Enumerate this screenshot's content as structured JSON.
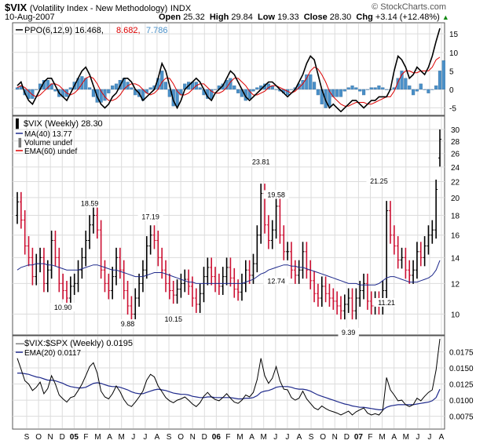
{
  "header": {
    "symbol": "$VIX",
    "description": "(Volatility Index - New Methodology)",
    "exchange": "INDX",
    "date": "10-Aug-2007",
    "open_label": "Open",
    "open": "25.32",
    "high_label": "High",
    "high": "29.84",
    "low_label": "Low",
    "low": "19.33",
    "close_label": "Close",
    "close": "28.30",
    "chg_label": "Chg",
    "chg": "+3.14 (+12.48%)",
    "brand": "© StockCharts.com"
  },
  "colors": {
    "ppo_line": "#000000",
    "ppo_signal": "#dd0000",
    "ppo_hist": "#4a90c8",
    "ma": "#1f2a8c",
    "ema60": "#dd0000",
    "up_bar": "#000000",
    "down_bar": "#cc1133",
    "ratio_line": "#000000",
    "ratio_ema": "#1f2a8c",
    "grid": "#dcdcdc"
  },
  "chart_data": [
    {
      "type": "line",
      "panel": "ppo",
      "legend": [
        "PPO(6,12,9) 16.468,",
        "8.682,",
        "7.786"
      ],
      "ylim": [
        -7,
        18
      ],
      "yticks": [
        "15",
        "10",
        "5",
        "0",
        "-5"
      ],
      "series": [
        {
          "name": "PPO(6,12,9)",
          "values": [
            1,
            2,
            -1,
            -3,
            -4,
            -2,
            0,
            2,
            3,
            3,
            1,
            -1,
            -2,
            -3,
            -1,
            1,
            3,
            5,
            6,
            4,
            1,
            -2,
            -4,
            -5,
            -4,
            -2,
            -1,
            1,
            3,
            3,
            2,
            0,
            -1,
            -3,
            -2,
            -1,
            0,
            3,
            7,
            5,
            1,
            -3,
            -5,
            -3,
            0,
            1,
            2,
            3,
            2,
            0,
            -2,
            -3,
            -1,
            0,
            1,
            3,
            5,
            4,
            2,
            0,
            -2,
            -3,
            -2,
            -1,
            0,
            1,
            2,
            2,
            1,
            0,
            -1,
            -2,
            -1,
            0,
            2,
            4,
            7,
            9,
            8,
            4,
            0,
            -3,
            -5,
            -4,
            -5,
            -6,
            -5,
            -4,
            -3,
            -3,
            -4,
            -5,
            -4,
            -3,
            -3,
            -2,
            -2,
            -2,
            0,
            5,
            9,
            8,
            6,
            3,
            4,
            6,
            5,
            4,
            6,
            9,
            13,
            16.5
          ]
        },
        {
          "name": "Signal",
          "values": [
            0.5,
            1,
            0.5,
            -0.5,
            -1.5,
            -2,
            -1.5,
            -0.5,
            0.5,
            1.5,
            1.5,
            1,
            0,
            -1,
            -1.5,
            -1,
            0,
            1.5,
            3,
            3.5,
            3,
            1.5,
            -0.5,
            -2,
            -3,
            -3,
            -2.5,
            -1.5,
            0,
            1,
            1.5,
            1.5,
            1,
            0,
            -1,
            -1.5,
            -1,
            0,
            2,
            3,
            3,
            1.5,
            -0.5,
            -1.5,
            -1.5,
            -1,
            0,
            1,
            1.5,
            1.5,
            0.5,
            -0.5,
            -1,
            -1,
            -0.5,
            0.5,
            2,
            3,
            3,
            2,
            1,
            -0.5,
            -1.5,
            -1.5,
            -1,
            -0.5,
            0.5,
            1,
            1,
            0.5,
            0,
            -0.5,
            -1,
            -0.5,
            0.5,
            1.5,
            3,
            5,
            6,
            5.5,
            4,
            2,
            -0.5,
            -2,
            -3,
            -4,
            -4.5,
            -4.5,
            -4,
            -3.5,
            -3.5,
            -3.5,
            -4,
            -4,
            -3.5,
            -3,
            -2.5,
            -2,
            -2,
            -0.5,
            2,
            4,
            5,
            5,
            4.5,
            4.5,
            5,
            5,
            5,
            6,
            8,
            8.7
          ]
        },
        {
          "name": "Histogram",
          "values": [
            0.5,
            1,
            -1.5,
            -2.5,
            -2.5,
            0,
            1.5,
            2.5,
            2.5,
            1.5,
            -0.5,
            -2,
            -2,
            -2,
            0.5,
            2,
            3,
            3.5,
            3,
            0.5,
            -2,
            -3.5,
            -3.5,
            -3,
            -1,
            1,
            1.5,
            2.5,
            3,
            2,
            0.5,
            -1.5,
            -2,
            -3,
            -1,
            0.5,
            1,
            3,
            5,
            2,
            -2,
            -4.5,
            -4.5,
            -1.5,
            1.5,
            2,
            2,
            2,
            0.5,
            -1.5,
            -2.5,
            -2.5,
            0,
            1,
            1.5,
            2.5,
            3,
            1,
            -1,
            -2,
            -3,
            -2.5,
            -0.5,
            0.5,
            1,
            1.5,
            1.5,
            1,
            0,
            -0.5,
            -1,
            -1.5,
            0,
            0.5,
            1.5,
            2.5,
            4,
            4,
            2,
            -1.5,
            -4,
            -5,
            -4.5,
            -2,
            -2,
            -2,
            -0.5,
            0.5,
            1,
            0.5,
            -0.5,
            -1.5,
            0,
            0.5,
            0.5,
            1,
            0.5,
            0,
            0,
            0.5,
            3,
            5,
            3,
            1,
            -1.5,
            -0.5,
            1.5,
            0,
            -1,
            0,
            1,
            5,
            7.8
          ]
        }
      ]
    },
    {
      "type": "bar",
      "panel": "price",
      "legend": [
        "$VIX (Weekly) 28.30",
        "MA(40) 13.77",
        "Volume undef",
        "EMA(60) undef"
      ],
      "scale": "log",
      "ylim": [
        9,
        31
      ],
      "yticks": [
        "30",
        "28",
        "26",
        "24",
        "22",
        "20",
        "18",
        "16",
        "14",
        "12",
        "10"
      ],
      "close": [
        19.5,
        17.5,
        15,
        14,
        12.5,
        13.5,
        14,
        12,
        13,
        15.5,
        14,
        12,
        11.5,
        11,
        11.8,
        12,
        13,
        14,
        15.5,
        17,
        18,
        16.5,
        13,
        12,
        11.5,
        12.5,
        14,
        13,
        11.5,
        10.5,
        10,
        11,
        12,
        13,
        15,
        16,
        15.5,
        14,
        13,
        12,
        11.5,
        11.2,
        11.6,
        12,
        12.3,
        11.8,
        11,
        10.6,
        11.3,
        12.5,
        13.2,
        12.5,
        12,
        11.8,
        12.5,
        13.2,
        12.4,
        11.6,
        11.4,
        12,
        13,
        12.6,
        13.5,
        16,
        20.5,
        17,
        15.5,
        16.5,
        19,
        16,
        14.5,
        14.5,
        13,
        12.6,
        13,
        14.5,
        13,
        12.2,
        11.3,
        11,
        11.8,
        11.3,
        11,
        10.8,
        10.5,
        10.2,
        10.6,
        11,
        10.2,
        11,
        11.5,
        12,
        10.8,
        10.5,
        10.8,
        10.5,
        11.5,
        18.5,
        16,
        15,
        13.8,
        14,
        13,
        12.6,
        13,
        14.5,
        14,
        15,
        16,
        16.5,
        21,
        28.3
      ],
      "open": [
        18,
        19.5,
        17.5,
        15,
        14,
        12.5,
        13.5,
        14,
        12,
        13,
        15.5,
        14,
        12,
        11.5,
        11,
        11.8,
        12,
        13,
        14,
        15.5,
        17,
        18,
        16.5,
        13,
        12,
        11.5,
        12.5,
        14,
        13,
        11.5,
        10.5,
        10,
        11,
        12,
        13,
        15,
        16,
        15.5,
        14,
        13,
        12,
        11.5,
        11.2,
        11.6,
        12,
        12.3,
        11.8,
        11,
        10.6,
        11.3,
        12.5,
        13.2,
        12.5,
        12,
        11.8,
        12.5,
        13.2,
        12.4,
        11.6,
        11.4,
        12,
        13,
        12.6,
        13.5,
        16,
        20.5,
        17,
        15.5,
        16.5,
        19,
        16,
        14.5,
        14.5,
        13,
        12.6,
        13,
        14.5,
        13,
        12.2,
        11.3,
        11,
        11.8,
        11.3,
        11,
        10.8,
        10.5,
        10.2,
        10.6,
        11,
        10.2,
        11,
        11.5,
        12,
        10.8,
        10.5,
        10.8,
        10.5,
        11.5,
        18.5,
        16,
        15,
        13.8,
        14,
        13,
        12.6,
        13,
        14.5,
        14,
        15,
        16,
        16.5,
        25.32
      ],
      "ma40": [
        13,
        13.2,
        13.3,
        13.4,
        13.4,
        13.5,
        13.5,
        13.5,
        13.4,
        13.4,
        13.3,
        13.2,
        13.1,
        13,
        13,
        13,
        13,
        13.1,
        13.2,
        13.3,
        13.4,
        13.4,
        13.3,
        13.2,
        13.1,
        13,
        13,
        12.9,
        12.8,
        12.7,
        12.6,
        12.5,
        12.5,
        12.5,
        12.6,
        12.7,
        12.8,
        12.8,
        12.8,
        12.7,
        12.6,
        12.5,
        12.4,
        12.3,
        12.2,
        12.1,
        12.1,
        12,
        12,
        12,
        12,
        12,
        12,
        12,
        12,
        12,
        12,
        12,
        12,
        12,
        12.1,
        12.2,
        12.3,
        12.5,
        12.7,
        12.8,
        13,
        13.1,
        13.2,
        13.3,
        13.4,
        13.4,
        13.3,
        13.3,
        13.2,
        13.2,
        13.1,
        13,
        12.9,
        12.8,
        12.7,
        12.6,
        12.5,
        12.4,
        12.3,
        12.2,
        12.1,
        12,
        12,
        12,
        11.9,
        11.9,
        11.9,
        11.9,
        11.9,
        12,
        12.2,
        12.4,
        12.5,
        12.5,
        12.4,
        12.3,
        12.2,
        12.1,
        12.1,
        12.1,
        12.2,
        12.3,
        12.4,
        12.6,
        13,
        13.77
      ],
      "annotations": [
        {
          "label": "18.59",
          "value": 18.59,
          "index": 19,
          "pos": "above"
        },
        {
          "label": "10.90",
          "value": 10.9,
          "index": 12,
          "pos": "below"
        },
        {
          "label": "9.88",
          "value": 9.88,
          "index": 29,
          "pos": "below"
        },
        {
          "label": "17.19",
          "value": 17.19,
          "index": 35,
          "pos": "above"
        },
        {
          "label": "10.15",
          "value": 10.15,
          "index": 41,
          "pos": "below"
        },
        {
          "label": "23.81",
          "value": 23.81,
          "index": 64,
          "pos": "above"
        },
        {
          "label": "19.58",
          "value": 19.58,
          "index": 68,
          "pos": "above"
        },
        {
          "label": "12.74",
          "value": 12.74,
          "index": 68,
          "pos": "below"
        },
        {
          "label": "9.39",
          "value": 9.39,
          "index": 87,
          "pos": "below"
        },
        {
          "label": "21.25",
          "value": 21.25,
          "index": 95,
          "pos": "above"
        },
        {
          "label": "11.21",
          "value": 11.21,
          "index": 97,
          "pos": "below"
        }
      ]
    },
    {
      "type": "line",
      "panel": "ratio",
      "legend": [
        "$VIX:$SPX (Weekly) 0.0195",
        "EMA(20) 0.0117"
      ],
      "ylim": [
        0.006,
        0.0195
      ],
      "yticks": [
        "0.0175",
        "0.0150",
        "0.0125",
        "0.0100",
        "0.0075"
      ],
      "series": [
        {
          "name": "$VIX:$SPX (Weekly)",
          "values": [
            0.0165,
            0.0148,
            0.013,
            0.0125,
            0.0115,
            0.012,
            0.0128,
            0.011,
            0.0118,
            0.0138,
            0.0125,
            0.0108,
            0.0102,
            0.0097,
            0.0104,
            0.0106,
            0.0115,
            0.0125,
            0.0138,
            0.0152,
            0.0158,
            0.0142,
            0.0114,
            0.0105,
            0.0102,
            0.011,
            0.0122,
            0.0113,
            0.0101,
            0.0093,
            0.009,
            0.0097,
            0.0105,
            0.0114,
            0.0131,
            0.014,
            0.0136,
            0.0122,
            0.0113,
            0.0104,
            0.0099,
            0.0096,
            0.01,
            0.0102,
            0.0105,
            0.01,
            0.0094,
            0.009,
            0.0096,
            0.0106,
            0.0112,
            0.0105,
            0.0101,
            0.0099,
            0.0104,
            0.011,
            0.0103,
            0.0097,
            0.0095,
            0.01,
            0.0108,
            0.0105,
            0.0112,
            0.0132,
            0.0165,
            0.0138,
            0.0126,
            0.0134,
            0.0152,
            0.013,
            0.0117,
            0.0116,
            0.0104,
            0.01,
            0.0103,
            0.0114,
            0.0102,
            0.0095,
            0.0088,
            0.0085,
            0.0091,
            0.0087,
            0.0084,
            0.0082,
            0.008,
            0.0077,
            0.008,
            0.0083,
            0.0077,
            0.0082,
            0.0085,
            0.0088,
            0.008,
            0.0077,
            0.0079,
            0.0077,
            0.0084,
            0.0135,
            0.0116,
            0.0108,
            0.0099,
            0.01,
            0.0093,
            0.009,
            0.0093,
            0.0103,
            0.0099,
            0.0106,
            0.0112,
            0.0116,
            0.0147,
            0.0195
          ]
        },
        {
          "name": "EMA(20)",
          "values": [
            0.0142,
            0.0142,
            0.0141,
            0.014,
            0.0138,
            0.0136,
            0.0135,
            0.0133,
            0.0131,
            0.0131,
            0.013,
            0.0128,
            0.0126,
            0.0123,
            0.0121,
            0.012,
            0.0119,
            0.0119,
            0.012,
            0.0123,
            0.0126,
            0.0127,
            0.0126,
            0.0124,
            0.0122,
            0.0121,
            0.0121,
            0.012,
            0.0118,
            0.0116,
            0.0113,
            0.0111,
            0.011,
            0.011,
            0.0112,
            0.0114,
            0.0116,
            0.0117,
            0.0116,
            0.0115,
            0.0113,
            0.0111,
            0.011,
            0.0109,
            0.0109,
            0.0108,
            0.0106,
            0.0105,
            0.0104,
            0.0104,
            0.0105,
            0.0105,
            0.0104,
            0.0104,
            0.0104,
            0.0104,
            0.0104,
            0.0103,
            0.0102,
            0.0102,
            0.0103,
            0.0103,
            0.0104,
            0.0107,
            0.0112,
            0.0114,
            0.0115,
            0.0117,
            0.012,
            0.0121,
            0.0121,
            0.0121,
            0.012,
            0.0118,
            0.0117,
            0.0117,
            0.0116,
            0.0114,
            0.0111,
            0.0108,
            0.0106,
            0.0104,
            0.0102,
            0.01,
            0.0098,
            0.0096,
            0.0094,
            0.0093,
            0.0091,
            0.009,
            0.0089,
            0.0089,
            0.0088,
            0.0087,
            0.0086,
            0.0085,
            0.0085,
            0.0089,
            0.0091,
            0.0092,
            0.0093,
            0.0093,
            0.0093,
            0.0093,
            0.0093,
            0.0094,
            0.0095,
            0.0096,
            0.0097,
            0.0099,
            0.0104,
            0.0117
          ]
        }
      ]
    }
  ],
  "xaxis": {
    "labels": [
      {
        "t": "S",
        "b": false
      },
      {
        "t": "O",
        "b": false
      },
      {
        "t": "N",
        "b": false
      },
      {
        "t": "D",
        "b": false
      },
      {
        "t": "05",
        "b": true
      },
      {
        "t": "F",
        "b": false
      },
      {
        "t": "M",
        "b": false
      },
      {
        "t": "A",
        "b": false
      },
      {
        "t": "M",
        "b": false
      },
      {
        "t": "J",
        "b": false
      },
      {
        "t": "J",
        "b": false
      },
      {
        "t": "A",
        "b": false
      },
      {
        "t": "S",
        "b": false
      },
      {
        "t": "O",
        "b": false
      },
      {
        "t": "N",
        "b": false
      },
      {
        "t": "D",
        "b": false
      },
      {
        "t": "06",
        "b": true
      },
      {
        "t": "F",
        "b": false
      },
      {
        "t": "M",
        "b": false
      },
      {
        "t": "A",
        "b": false
      },
      {
        "t": "M",
        "b": false
      },
      {
        "t": "J",
        "b": false
      },
      {
        "t": "J",
        "b": false
      },
      {
        "t": "A",
        "b": false
      },
      {
        "t": "S",
        "b": false
      },
      {
        "t": "O",
        "b": false
      },
      {
        "t": "N",
        "b": false
      },
      {
        "t": "D",
        "b": false
      },
      {
        "t": "07",
        "b": true
      },
      {
        "t": "F",
        "b": false
      },
      {
        "t": "M",
        "b": false
      },
      {
        "t": "A",
        "b": false
      },
      {
        "t": "M",
        "b": false
      },
      {
        "t": "J",
        "b": false
      },
      {
        "t": "J",
        "b": false
      },
      {
        "t": "A",
        "b": false
      }
    ]
  }
}
